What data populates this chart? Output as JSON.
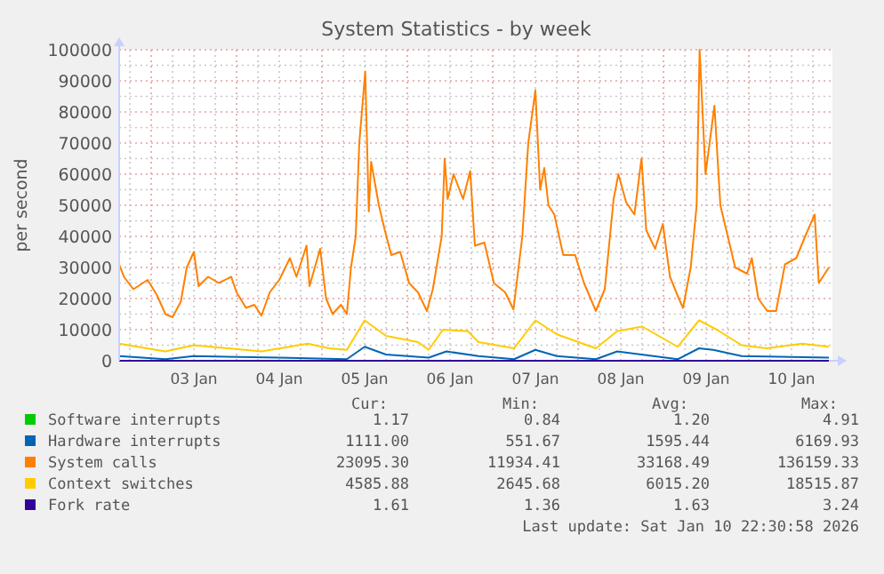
{
  "chart_data": {
    "type": "line",
    "title": "System Statistics - by week",
    "ylabel": "per second",
    "xlim": [
      "2026-01-02T15:00",
      "2026-01-10T23:30"
    ],
    "xticks": [
      {
        "value": "2026-01-03T12:00",
        "label": "03 Jan"
      },
      {
        "value": "2026-01-04T12:00",
        "label": "04 Jan"
      },
      {
        "value": "2026-01-05T12:00",
        "label": "05 Jan"
      },
      {
        "value": "2026-01-06T12:00",
        "label": "06 Jan"
      },
      {
        "value": "2026-01-07T12:00",
        "label": "07 Jan"
      },
      {
        "value": "2026-01-08T12:00",
        "label": "08 Jan"
      },
      {
        "value": "2026-01-09T12:00",
        "label": "09 Jan"
      },
      {
        "value": "2026-01-10T12:00",
        "label": "10 Jan"
      }
    ],
    "ylim": [
      0,
      100000
    ],
    "yticks": [
      0,
      10000,
      20000,
      30000,
      40000,
      50000,
      60000,
      70000,
      80000,
      90000,
      100000
    ],
    "grid": true,
    "legend": "bottom",
    "marker": "none",
    "line_style": "solid",
    "series": [
      {
        "name": "Software interrupts",
        "color": "#00cc00"
      },
      {
        "name": "Hardware interrupts",
        "color": "#0066b3",
        "x": [
          "2026-01-02T15:00",
          "2026-01-03T04:00",
          "2026-01-03T12:00",
          "2026-01-04T12:00",
          "2026-01-05T07:00",
          "2026-01-05T12:00",
          "2026-01-05T18:00",
          "2026-01-06T06:00",
          "2026-01-06T11:00",
          "2026-01-06T20:00",
          "2026-01-07T06:00",
          "2026-01-07T12:00",
          "2026-01-07T18:00",
          "2026-01-08T05:00",
          "2026-01-08T11:00",
          "2026-01-09T04:00",
          "2026-01-09T10:00",
          "2026-01-09T14:00",
          "2026-01-09T22:00",
          "2026-01-10T22:30"
        ],
        "values": [
          1500,
          500,
          1500,
          1000,
          500,
          4500,
          2000,
          1000,
          3000,
          1500,
          500,
          3500,
          1500,
          500,
          3000,
          500,
          4000,
          3500,
          1500,
          1000
        ]
      },
      {
        "name": "System calls",
        "color": "#ff8000",
        "x": [
          "2026-01-02T15:00",
          "2026-01-02T16:20",
          "2026-01-02T19:00",
          "2026-01-02T23:00",
          "2026-01-03T01:40",
          "2026-01-03T04:00",
          "2026-01-03T06:00",
          "2026-01-03T08:20",
          "2026-01-03T10:00",
          "2026-01-03T12:00",
          "2026-01-03T13:20",
          "2026-01-03T16:00",
          "2026-01-03T19:00",
          "2026-01-03T22:30",
          "2026-01-04T00:00",
          "2026-01-04T02:40",
          "2026-01-04T05:00",
          "2026-01-04T07:00",
          "2026-01-04T09:20",
          "2026-01-04T12:00",
          "2026-01-04T15:00",
          "2026-01-04T16:50",
          "2026-01-04T19:40",
          "2026-01-04T20:30",
          "2026-01-04T23:30",
          "2026-01-05T01:10",
          "2026-01-05T03:00",
          "2026-01-05T05:20",
          "2026-01-05T07:00",
          "2026-01-05T08:10",
          "2026-01-05T09:30",
          "2026-01-05T10:30",
          "2026-01-05T12:10",
          "2026-01-05T13:10",
          "2026-01-05T13:50",
          "2026-01-05T16:00",
          "2026-01-05T17:40",
          "2026-01-05T19:30",
          "2026-01-05T22:00",
          "2026-01-06T00:30",
          "2026-01-06T03:00",
          "2026-01-06T05:30",
          "2026-01-06T07:10",
          "2026-01-06T09:40",
          "2026-01-06T10:30",
          "2026-01-06T11:20",
          "2026-01-06T13:00",
          "2026-01-06T15:40",
          "2026-01-06T17:40",
          "2026-01-06T19:00",
          "2026-01-06T21:40",
          "2026-01-07T00:20",
          "2026-01-07T03:30",
          "2026-01-07T05:50",
          "2026-01-07T08:20",
          "2026-01-07T10:00",
          "2026-01-07T12:00",
          "2026-01-07T13:20",
          "2026-01-07T14:30",
          "2026-01-07T15:40",
          "2026-01-07T17:20",
          "2026-01-07T19:50",
          "2026-01-07T23:10",
          "2026-01-08T01:40",
          "2026-01-08T05:00",
          "2026-01-08T07:30",
          "2026-01-08T10:00",
          "2026-01-08T11:20",
          "2026-01-08T13:30",
          "2026-01-08T15:50",
          "2026-01-08T17:50",
          "2026-01-08T19:10",
          "2026-01-08T21:40",
          "2026-01-08T23:50",
          "2026-01-09T01:50",
          "2026-01-09T04:20",
          "2026-01-09T05:30",
          "2026-01-09T07:40",
          "2026-01-09T09:20",
          "2026-01-09T10:10",
          "2026-01-09T11:50",
          "2026-01-09T14:20",
          "2026-01-09T16:00",
          "2026-01-09T18:30",
          "2026-01-09T20:10",
          "2026-01-09T23:30",
          "2026-01-10T00:50",
          "2026-01-10T02:40",
          "2026-01-10T05:10",
          "2026-01-10T07:40",
          "2026-01-10T10:10",
          "2026-01-10T13:20",
          "2026-01-10T15:50",
          "2026-01-10T18:30",
          "2026-01-10T19:40",
          "2026-01-10T22:30"
        ],
        "values": [
          31000,
          27000,
          23000,
          26000,
          21000,
          15000,
          14000,
          19000,
          30000,
          35000,
          24000,
          27000,
          25000,
          27000,
          22000,
          17000,
          18000,
          14500,
          22000,
          26000,
          33000,
          27000,
          37000,
          24000,
          36000,
          20000,
          15000,
          18000,
          15000,
          30000,
          40000,
          70000,
          93000,
          48000,
          64000,
          50000,
          42000,
          34000,
          35000,
          25000,
          22000,
          16000,
          23000,
          40000,
          65000,
          52000,
          60000,
          52000,
          61000,
          37000,
          38000,
          25000,
          22000,
          16500,
          40000,
          70000,
          87000,
          55000,
          62000,
          50000,
          47000,
          34000,
          34000,
          25000,
          16000,
          23000,
          52000,
          60000,
          51000,
          47000,
          65000,
          42000,
          36000,
          44000,
          27000,
          20000,
          17000,
          30000,
          50000,
          100000,
          60000,
          82000,
          50000,
          38000,
          30000,
          28000,
          33000,
          20000,
          16000,
          16000,
          31000,
          33000,
          40000,
          47000,
          25000,
          30000
        ]
      },
      {
        "name": "Context switches",
        "color": "#ffcc00",
        "x": [
          "2026-01-02T15:00",
          "2026-01-03T04:00",
          "2026-01-03T12:00",
          "2026-01-04T07:00",
          "2026-01-04T20:00",
          "2026-01-05T02:00",
          "2026-01-05T07:00",
          "2026-01-05T12:00",
          "2026-01-05T18:00",
          "2026-01-06T03:00",
          "2026-01-06T06:00",
          "2026-01-06T10:00",
          "2026-01-06T17:00",
          "2026-01-06T20:00",
          "2026-01-07T06:00",
          "2026-01-07T12:00",
          "2026-01-07T18:00",
          "2026-01-08T05:00",
          "2026-01-08T11:00",
          "2026-01-08T18:00",
          "2026-01-09T04:00",
          "2026-01-09T10:00",
          "2026-01-09T15:00",
          "2026-01-09T22:00",
          "2026-01-10T05:00",
          "2026-01-10T15:00",
          "2026-01-10T22:30"
        ],
        "values": [
          5500,
          3000,
          5000,
          3000,
          5500,
          4000,
          3500,
          13000,
          8000,
          6000,
          3500,
          10000,
          9500,
          6000,
          4000,
          13000,
          8500,
          4000,
          9500,
          11000,
          4500,
          13000,
          10000,
          5000,
          4000,
          5500,
          4500
        ]
      },
      {
        "name": "Fork rate",
        "color": "#330099",
        "x": [
          "2026-01-02T15:00",
          "2026-01-10T22:30"
        ],
        "values": [
          0,
          0
        ]
      }
    ],
    "annotations": [
      "Cur:",
      "Min:",
      "Avg:",
      "Max:",
      "1.17",
      "0.84",
      "1.20",
      "4.91",
      "1111.00",
      "551.67",
      "1595.44",
      "6169.93",
      "23095.30",
      "11934.41",
      "33168.49",
      "136159.33",
      "4585.88",
      "2645.68",
      "6015.20",
      "18515.87",
      "1.61",
      "1.36",
      "1.63",
      "3.24",
      "Last update: Sat Jan 10 22:30:58 2026"
    ]
  }
}
